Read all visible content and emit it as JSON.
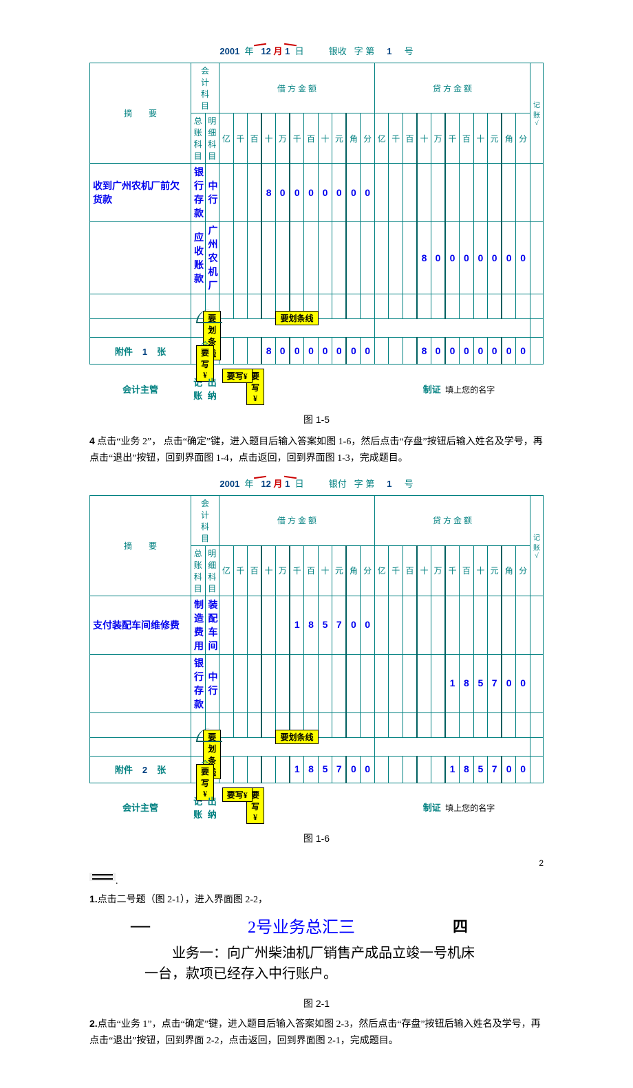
{
  "voucher1": {
    "header": {
      "year": "2001",
      "year_lbl": "年",
      "month": "12",
      "month_lbl": "月",
      "day": "1",
      "day_lbl": "日",
      "type": "银收",
      "type2": "字 第",
      "no": "1",
      "no_lbl": "号"
    },
    "cols": {
      "summary": "摘　　要",
      "acct": "会　　计　　科　　目",
      "acct1": "总 账 科 目",
      "acct2": "明 细 科 目",
      "debit": "借 方 金 额",
      "credit": "贷 方 金 额",
      "jz": "记账√"
    },
    "units": [
      "亿",
      "千",
      "百",
      "十",
      "万",
      "千",
      "百",
      "十",
      "元",
      "角",
      "分"
    ],
    "rows": [
      {
        "summary": "收到广州农机厂前欠货款",
        "a1": "银行存款",
        "a2": "中行",
        "d": "80000000",
        "c": ""
      },
      {
        "summary": "",
        "a1": "应收账款",
        "a2": "广州农机厂",
        "d": "",
        "c": "80000000"
      }
    ],
    "annot1": "要划条线",
    "annot2": "要划条线",
    "attach": {
      "l": "附件",
      "n": "1",
      "r": "张"
    },
    "total": {
      "lbl": "合　　　　计",
      "d": "80000000",
      "c": "80000000"
    },
    "ywrite": "要写¥",
    "footer": {
      "a": "会计主管",
      "b": "记账",
      "c": "出纳",
      "d": "制证",
      "e": "填上您的名字"
    },
    "caption": "图 1-5"
  },
  "para1": {
    "pre": "4",
    "body": " 点击“业务 2”， 点击“确定”键，进入题目后输入答案如图 1-6，然后点击“存盘”按钮后输入姓名及学号，再点击“退出”按钮，回到界面图 1-4，点击返回，回到界面图 1-3，完成题目。"
  },
  "voucher2": {
    "header": {
      "year": "2001",
      "year_lbl": "年",
      "month": "12",
      "month_lbl": "月",
      "day": "1",
      "day_lbl": "日",
      "type": "银付",
      "type2": "字 第",
      "no": "1",
      "no_lbl": "号"
    },
    "rows": [
      {
        "summary": "支付装配车间维修费",
        "a1": "制造费用",
        "a2": "装配车间",
        "d": "185700",
        "c": ""
      },
      {
        "summary": "",
        "a1": "银行存款",
        "a2": "中行",
        "d": "",
        "c": "185700"
      }
    ],
    "annot1": "要划条线",
    "annot2": "要划条线",
    "attach": {
      "l": "附件",
      "n": "2",
      "r": "张"
    },
    "total": {
      "lbl": "合　　　　计",
      "d": "185700",
      "c": "185700"
    },
    "ywrite": "要写¥",
    "footer": {
      "a": "会计主管",
      "b": "记账",
      "c": "出纳",
      "d": "制证",
      "e": "填上您的名字"
    },
    "caption": "图 1-6"
  },
  "sec2": {
    "marker": "二",
    "dot": "."
  },
  "para2": {
    "pre": "1.",
    "body": "点击二号题（图 2-1），进入界面图 2-2，"
  },
  "q2": {
    "dash": "—",
    "title": "2号业务总汇三",
    "right": "四",
    "body": "　　业务一：向广州柴油机厂销售产成品立竣一号机床一台，款项已经存入中行账户。",
    "caption": "图 2-1"
  },
  "para3": {
    "pre": "2.",
    "body": "点击“业务 1”，点击“确定”键，进入题目后输入答案如图 2-3，然后点击“存盘”按钮后输入姓名及学号，再点击“退出”按钮，回到界面 2-2，点击返回，回到界面图 2-1，完成题目。"
  },
  "pagenum": "2"
}
